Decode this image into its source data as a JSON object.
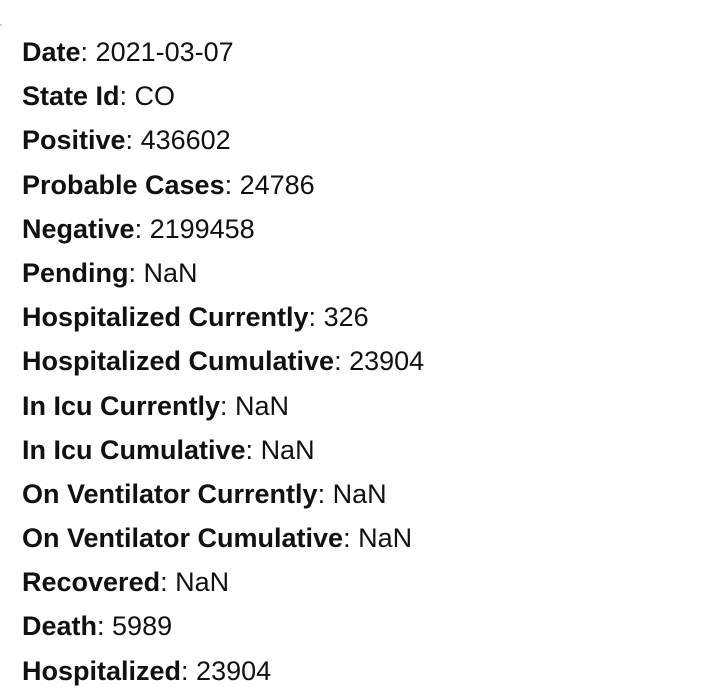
{
  "fields": [
    {
      "label": "Date",
      "value": "2021-03-07"
    },
    {
      "label": "State Id",
      "value": "CO"
    },
    {
      "label": "Positive",
      "value": "436602"
    },
    {
      "label": "Probable Cases",
      "value": "24786"
    },
    {
      "label": "Negative",
      "value": "2199458"
    },
    {
      "label": "Pending",
      "value": "NaN"
    },
    {
      "label": "Hospitalized Currently",
      "value": "326"
    },
    {
      "label": "Hospitalized Cumulative",
      "value": "23904"
    },
    {
      "label": "In Icu Currently",
      "value": "NaN"
    },
    {
      "label": "In Icu Cumulative",
      "value": "NaN"
    },
    {
      "label": "On Ventilator Currently",
      "value": "NaN"
    },
    {
      "label": "On Ventilator Cumulative",
      "value": "NaN"
    },
    {
      "label": "Recovered",
      "value": "NaN"
    },
    {
      "label": "Death",
      "value": "5989"
    },
    {
      "label": "Hospitalized",
      "value": "23904"
    }
  ]
}
